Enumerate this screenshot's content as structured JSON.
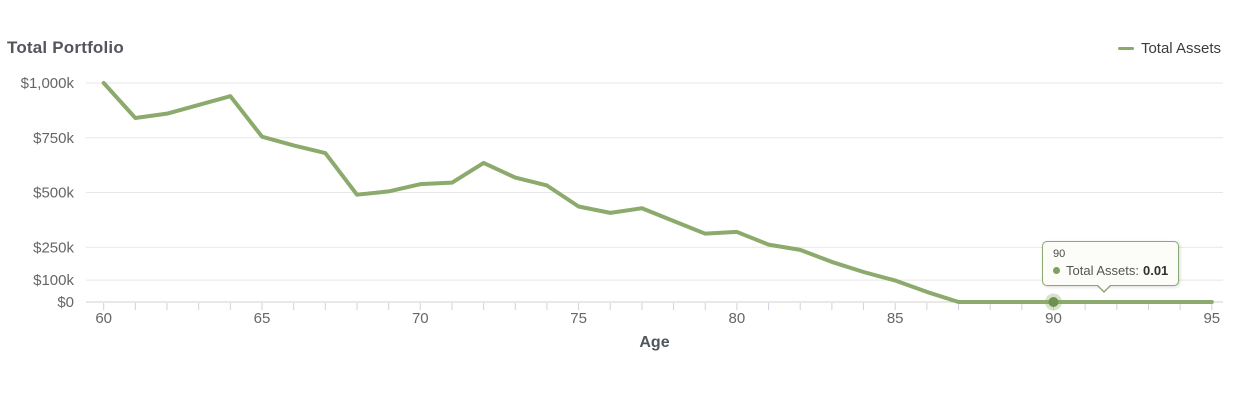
{
  "header": {
    "title": "Total Portfolio"
  },
  "legend": {
    "items": [
      {
        "label": "Total Assets",
        "color": "#8BAA6C"
      }
    ]
  },
  "x_axis": {
    "title": "Age"
  },
  "tooltip": {
    "header": "90",
    "series_label": "Total Assets:",
    "value": "0.01",
    "dot_color": "#7fa05f",
    "border_color": "#8aa871"
  },
  "colors": {
    "series_green": "#8BAA6C",
    "marker_green": "#6F9150",
    "gridline": "#e7e7e7",
    "axis_line": "#d0d0d0",
    "tick_mark": "#c9d4e2",
    "axis_text": "#666666",
    "title_text": "#54565e"
  },
  "chart_data": {
    "type": "line",
    "title": "Total Portfolio",
    "xlabel": "Age",
    "ylabel": "",
    "x": [
      60,
      61,
      62,
      63,
      64,
      65,
      66,
      67,
      68,
      69,
      70,
      71,
      72,
      73,
      74,
      75,
      76,
      77,
      78,
      79,
      80,
      81,
      82,
      83,
      84,
      85,
      86,
      87,
      88,
      89,
      90,
      91,
      92,
      93,
      94,
      95
    ],
    "series": [
      {
        "name": "Total Assets",
        "color": "#8BAA6C",
        "values": [
          1000,
          840,
          860,
          900,
          940,
          755,
          715,
          680,
          490,
          505,
          538,
          545,
          635,
          568,
          532,
          436,
          407,
          428,
          370,
          312,
          320,
          262,
          238,
          183,
          137,
          98,
          46,
          0.01,
          0.01,
          0.01,
          0.01,
          0.01,
          0.01,
          0.01,
          0.01,
          0.01
        ]
      }
    ],
    "y_ticks": [
      {
        "value": 0,
        "label": "$0"
      },
      {
        "value": 100,
        "label": "$100k"
      },
      {
        "value": 250,
        "label": "$250k"
      },
      {
        "value": 500,
        "label": "$500k"
      },
      {
        "value": 750,
        "label": "$750k"
      },
      {
        "value": 1000,
        "label": "$1,000k"
      }
    ],
    "x_tick_labels": [
      60,
      65,
      70,
      75,
      80,
      85,
      90,
      95
    ],
    "xlim": [
      59.5,
      95.7
    ],
    "ylim": [
      0,
      1000
    ],
    "grid": true,
    "legend_position": "top-right",
    "highlight_point": {
      "x": 90,
      "value": 0.01,
      "tooltip": "90 — Total Assets: 0.01"
    },
    "y_unit": "$ thousands"
  }
}
